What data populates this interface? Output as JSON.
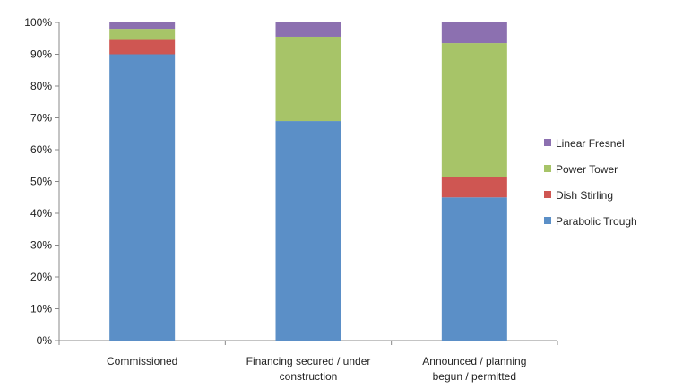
{
  "chart_data": {
    "type": "bar",
    "stacked": true,
    "title": "",
    "xlabel": "",
    "ylabel": "",
    "ylim": [
      0,
      100
    ],
    "ytick_labels": [
      "0%",
      "10%",
      "20%",
      "30%",
      "40%",
      "50%",
      "60%",
      "70%",
      "80%",
      "90%",
      "100%"
    ],
    "categories": [
      [
        "Commissioned"
      ],
      [
        "Financing secured / under",
        "construction"
      ],
      [
        "Announced / planning",
        "begun / permitted"
      ]
    ],
    "series": [
      {
        "name": "Parabolic Trough",
        "color": "#5b8fc7",
        "values": [
          90,
          69,
          45
        ]
      },
      {
        "name": "Dish Stirling",
        "color": "#cf5652",
        "values": [
          4.5,
          0,
          6.5
        ]
      },
      {
        "name": "Power Tower",
        "color": "#a7c468",
        "values": [
          3.5,
          26.5,
          42
        ]
      },
      {
        "name": "Linear Fresnel",
        "color": "#8c70b0",
        "values": [
          2,
          4.5,
          6.5
        ]
      }
    ],
    "legend_position": "right",
    "legend_order": [
      "Linear Fresnel",
      "Power Tower",
      "Dish Stirling",
      "Parabolic Trough"
    ],
    "grid": false
  }
}
